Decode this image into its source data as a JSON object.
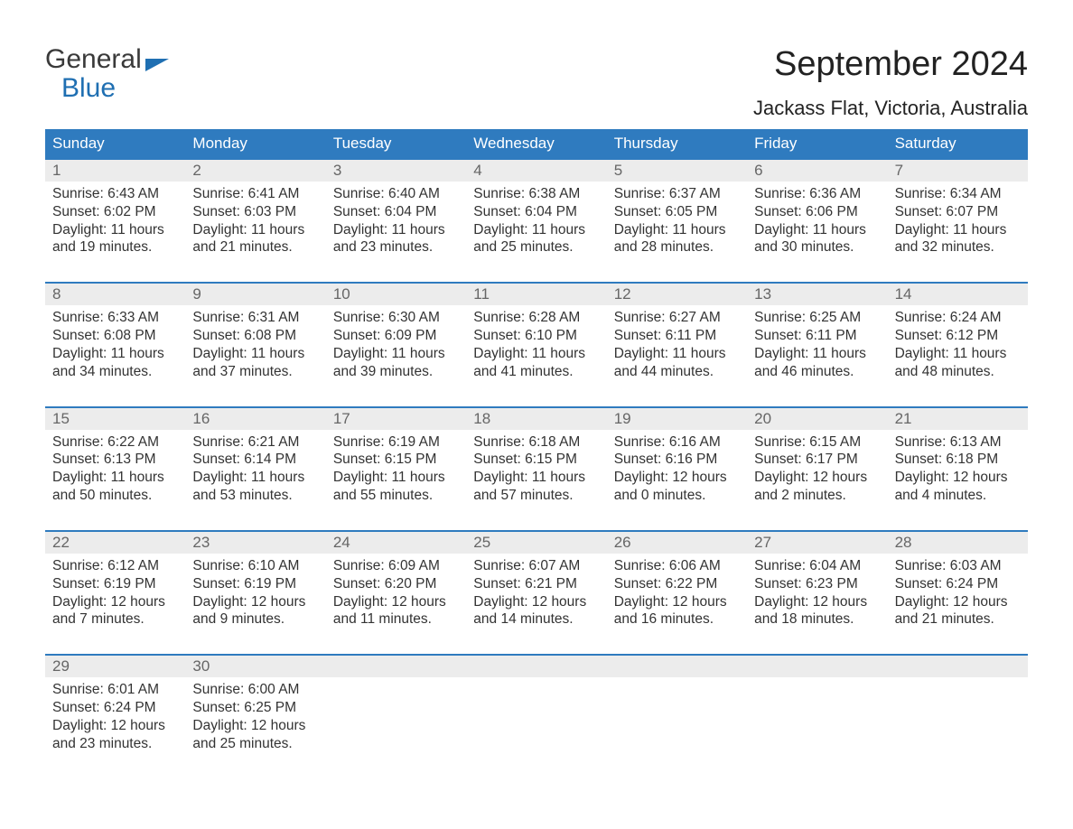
{
  "logo": {
    "line1": "General",
    "line2": "Blue"
  },
  "title": "September 2024",
  "location": "Jackass Flat, Victoria, Australia",
  "colors": {
    "header_bg": "#2f7bbf",
    "header_text": "#ffffff",
    "num_bg": "#ececec",
    "num_text": "#666666",
    "body_text": "#333333",
    "accent": "#1f6fb2",
    "page_bg": "#ffffff"
  },
  "typography": {
    "title_fontsize": 38,
    "location_fontsize": 22,
    "dayheader_fontsize": 17,
    "num_fontsize": 17,
    "info_fontsize": 15.5,
    "logo_fontsize": 30
  },
  "day_names": [
    "Sunday",
    "Monday",
    "Tuesday",
    "Wednesday",
    "Thursday",
    "Friday",
    "Saturday"
  ],
  "weeks": [
    [
      {
        "n": "1",
        "sr": "Sunrise: 6:43 AM",
        "ss": "Sunset: 6:02 PM",
        "d1": "Daylight: 11 hours",
        "d2": "and 19 minutes."
      },
      {
        "n": "2",
        "sr": "Sunrise: 6:41 AM",
        "ss": "Sunset: 6:03 PM",
        "d1": "Daylight: 11 hours",
        "d2": "and 21 minutes."
      },
      {
        "n": "3",
        "sr": "Sunrise: 6:40 AM",
        "ss": "Sunset: 6:04 PM",
        "d1": "Daylight: 11 hours",
        "d2": "and 23 minutes."
      },
      {
        "n": "4",
        "sr": "Sunrise: 6:38 AM",
        "ss": "Sunset: 6:04 PM",
        "d1": "Daylight: 11 hours",
        "d2": "and 25 minutes."
      },
      {
        "n": "5",
        "sr": "Sunrise: 6:37 AM",
        "ss": "Sunset: 6:05 PM",
        "d1": "Daylight: 11 hours",
        "d2": "and 28 minutes."
      },
      {
        "n": "6",
        "sr": "Sunrise: 6:36 AM",
        "ss": "Sunset: 6:06 PM",
        "d1": "Daylight: 11 hours",
        "d2": "and 30 minutes."
      },
      {
        "n": "7",
        "sr": "Sunrise: 6:34 AM",
        "ss": "Sunset: 6:07 PM",
        "d1": "Daylight: 11 hours",
        "d2": "and 32 minutes."
      }
    ],
    [
      {
        "n": "8",
        "sr": "Sunrise: 6:33 AM",
        "ss": "Sunset: 6:08 PM",
        "d1": "Daylight: 11 hours",
        "d2": "and 34 minutes."
      },
      {
        "n": "9",
        "sr": "Sunrise: 6:31 AM",
        "ss": "Sunset: 6:08 PM",
        "d1": "Daylight: 11 hours",
        "d2": "and 37 minutes."
      },
      {
        "n": "10",
        "sr": "Sunrise: 6:30 AM",
        "ss": "Sunset: 6:09 PM",
        "d1": "Daylight: 11 hours",
        "d2": "and 39 minutes."
      },
      {
        "n": "11",
        "sr": "Sunrise: 6:28 AM",
        "ss": "Sunset: 6:10 PM",
        "d1": "Daylight: 11 hours",
        "d2": "and 41 minutes."
      },
      {
        "n": "12",
        "sr": "Sunrise: 6:27 AM",
        "ss": "Sunset: 6:11 PM",
        "d1": "Daylight: 11 hours",
        "d2": "and 44 minutes."
      },
      {
        "n": "13",
        "sr": "Sunrise: 6:25 AM",
        "ss": "Sunset: 6:11 PM",
        "d1": "Daylight: 11 hours",
        "d2": "and 46 minutes."
      },
      {
        "n": "14",
        "sr": "Sunrise: 6:24 AM",
        "ss": "Sunset: 6:12 PM",
        "d1": "Daylight: 11 hours",
        "d2": "and 48 minutes."
      }
    ],
    [
      {
        "n": "15",
        "sr": "Sunrise: 6:22 AM",
        "ss": "Sunset: 6:13 PM",
        "d1": "Daylight: 11 hours",
        "d2": "and 50 minutes."
      },
      {
        "n": "16",
        "sr": "Sunrise: 6:21 AM",
        "ss": "Sunset: 6:14 PM",
        "d1": "Daylight: 11 hours",
        "d2": "and 53 minutes."
      },
      {
        "n": "17",
        "sr": "Sunrise: 6:19 AM",
        "ss": "Sunset: 6:15 PM",
        "d1": "Daylight: 11 hours",
        "d2": "and 55 minutes."
      },
      {
        "n": "18",
        "sr": "Sunrise: 6:18 AM",
        "ss": "Sunset: 6:15 PM",
        "d1": "Daylight: 11 hours",
        "d2": "and 57 minutes."
      },
      {
        "n": "19",
        "sr": "Sunrise: 6:16 AM",
        "ss": "Sunset: 6:16 PM",
        "d1": "Daylight: 12 hours",
        "d2": "and 0 minutes."
      },
      {
        "n": "20",
        "sr": "Sunrise: 6:15 AM",
        "ss": "Sunset: 6:17 PM",
        "d1": "Daylight: 12 hours",
        "d2": "and 2 minutes."
      },
      {
        "n": "21",
        "sr": "Sunrise: 6:13 AM",
        "ss": "Sunset: 6:18 PM",
        "d1": "Daylight: 12 hours",
        "d2": "and 4 minutes."
      }
    ],
    [
      {
        "n": "22",
        "sr": "Sunrise: 6:12 AM",
        "ss": "Sunset: 6:19 PM",
        "d1": "Daylight: 12 hours",
        "d2": "and 7 minutes."
      },
      {
        "n": "23",
        "sr": "Sunrise: 6:10 AM",
        "ss": "Sunset: 6:19 PM",
        "d1": "Daylight: 12 hours",
        "d2": "and 9 minutes."
      },
      {
        "n": "24",
        "sr": "Sunrise: 6:09 AM",
        "ss": "Sunset: 6:20 PM",
        "d1": "Daylight: 12 hours",
        "d2": "and 11 minutes."
      },
      {
        "n": "25",
        "sr": "Sunrise: 6:07 AM",
        "ss": "Sunset: 6:21 PM",
        "d1": "Daylight: 12 hours",
        "d2": "and 14 minutes."
      },
      {
        "n": "26",
        "sr": "Sunrise: 6:06 AM",
        "ss": "Sunset: 6:22 PM",
        "d1": "Daylight: 12 hours",
        "d2": "and 16 minutes."
      },
      {
        "n": "27",
        "sr": "Sunrise: 6:04 AM",
        "ss": "Sunset: 6:23 PM",
        "d1": "Daylight: 12 hours",
        "d2": "and 18 minutes."
      },
      {
        "n": "28",
        "sr": "Sunrise: 6:03 AM",
        "ss": "Sunset: 6:24 PM",
        "d1": "Daylight: 12 hours",
        "d2": "and 21 minutes."
      }
    ],
    [
      {
        "n": "29",
        "sr": "Sunrise: 6:01 AM",
        "ss": "Sunset: 6:24 PM",
        "d1": "Daylight: 12 hours",
        "d2": "and 23 minutes."
      },
      {
        "n": "30",
        "sr": "Sunrise: 6:00 AM",
        "ss": "Sunset: 6:25 PM",
        "d1": "Daylight: 12 hours",
        "d2": "and 25 minutes."
      },
      {
        "n": "",
        "sr": "",
        "ss": "",
        "d1": "",
        "d2": ""
      },
      {
        "n": "",
        "sr": "",
        "ss": "",
        "d1": "",
        "d2": ""
      },
      {
        "n": "",
        "sr": "",
        "ss": "",
        "d1": "",
        "d2": ""
      },
      {
        "n": "",
        "sr": "",
        "ss": "",
        "d1": "",
        "d2": ""
      },
      {
        "n": "",
        "sr": "",
        "ss": "",
        "d1": "",
        "d2": ""
      }
    ]
  ]
}
